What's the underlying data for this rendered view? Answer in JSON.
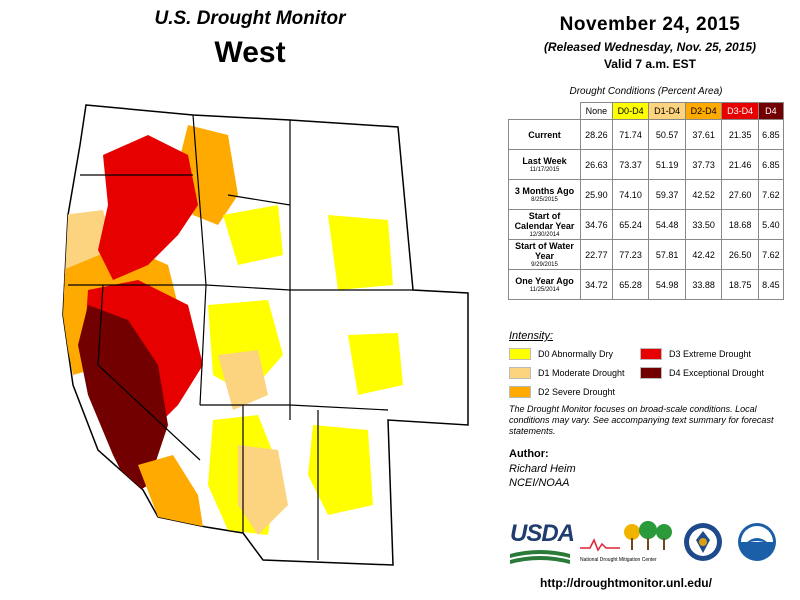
{
  "header": {
    "title": "U.S. Drought Monitor",
    "region": "West"
  },
  "date": {
    "main": "November 24, 2015",
    "released": "(Released Wednesday, Nov. 25, 2015)",
    "valid": "Valid  7 a.m. EST"
  },
  "table": {
    "caption": "Drought Conditions (Percent Area)",
    "columns": [
      "None",
      "D0-D4",
      "D1-D4",
      "D2-D4",
      "D3-D4",
      "D4"
    ],
    "rows": [
      {
        "label": "Current",
        "sub": "",
        "values": [
          "28.26",
          "71.74",
          "50.57",
          "37.61",
          "21.35",
          "6.85"
        ]
      },
      {
        "label": "Last Week",
        "sub": "11/17/2015",
        "values": [
          "26.63",
          "73.37",
          "51.19",
          "37.73",
          "21.46",
          "6.85"
        ]
      },
      {
        "label": "3 Months Ago",
        "sub": "8/25/2015",
        "values": [
          "25.90",
          "74.10",
          "59.37",
          "42.52",
          "27.60",
          "7.62"
        ]
      },
      {
        "label": "Start of Calendar Year",
        "sub": "12/30/2014",
        "values": [
          "34.76",
          "65.24",
          "54.48",
          "33.50",
          "18.68",
          "5.40"
        ]
      },
      {
        "label": "Start of Water Year",
        "sub": "9/29/2015",
        "values": [
          "22.77",
          "77.23",
          "57.81",
          "42.42",
          "26.50",
          "7.62"
        ]
      },
      {
        "label": "One Year Ago",
        "sub": "11/25/2014",
        "values": [
          "34.72",
          "65.28",
          "54.98",
          "33.88",
          "18.75",
          "8.45"
        ]
      }
    ]
  },
  "legend": {
    "title": "Intensity:",
    "items": [
      {
        "label": "D0 Abnormally Dry",
        "color": "#ffff00"
      },
      {
        "label": "D1 Moderate Drought",
        "color": "#fcd37f"
      },
      {
        "label": "D2 Severe Drought",
        "color": "#ffaa00"
      },
      {
        "label": "D3 Extreme Drought",
        "color": "#e60000"
      },
      {
        "label": "D4 Exceptional Drought",
        "color": "#730000"
      }
    ]
  },
  "note": "The Drought Monitor focuses on broad-scale conditions. Local conditions may vary. See accompanying text summary for forecast statements.",
  "author": {
    "label": "Author:",
    "name": "Richard Heim",
    "org": "NCEI/NOAA"
  },
  "logos": {
    "usda": "USDA",
    "ndmc_line1": "National",
    "ndmc_line2": "Drought Mitigation Center"
  },
  "url": "http://droughtmonitor.unl.edu/"
}
